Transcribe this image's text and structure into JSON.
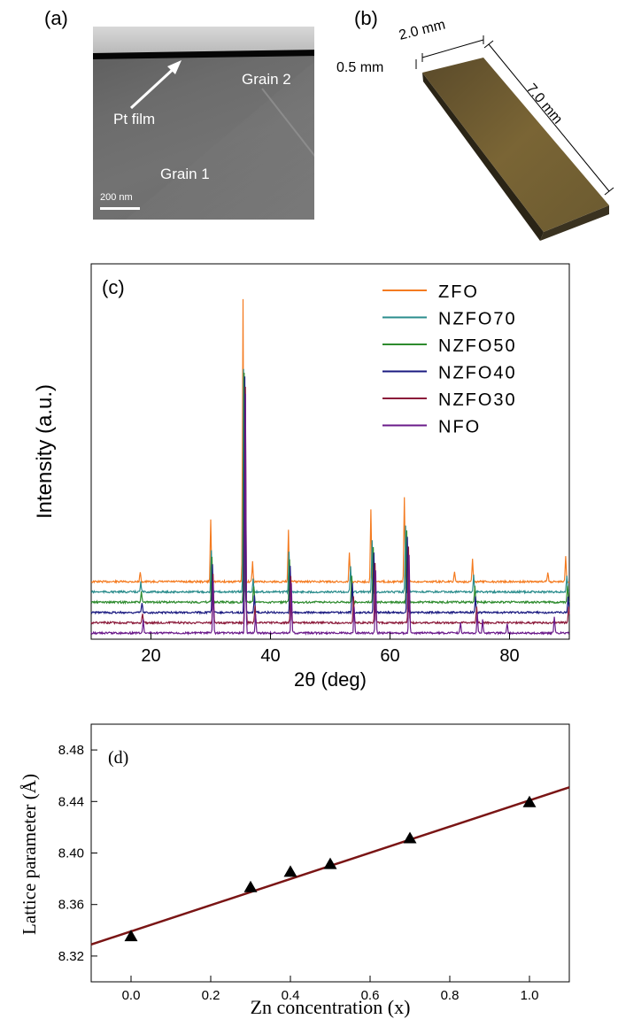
{
  "panel_a": {
    "label": "(a)",
    "pt_film": "Pt film",
    "grain1": "Grain 1",
    "grain2": "Grain 2",
    "scale_bar": "200 nm"
  },
  "panel_b": {
    "label": "(b)",
    "width": "2.0 mm",
    "thickness": "0.5 mm",
    "length": "7.0 mm"
  },
  "panel_c": {
    "label": "(c)",
    "chart_data": {
      "type": "line",
      "xlabel": "2θ (deg)",
      "ylabel": "Intensity (a.u.)",
      "xlim": [
        10,
        90
      ],
      "xticks": [
        20,
        40,
        60,
        80
      ],
      "legend_position": "top-right",
      "series": [
        {
          "name": "ZFO",
          "color": "#f47b20",
          "offset": 5,
          "peaks": [
            [
              18.2,
              0.3
            ],
            [
              30.0,
              1.9
            ],
            [
              35.4,
              8.6
            ],
            [
              37.0,
              0.6
            ],
            [
              43.0,
              1.6
            ],
            [
              53.2,
              0.9
            ],
            [
              56.8,
              2.2
            ],
            [
              62.4,
              2.6
            ],
            [
              70.8,
              0.3
            ],
            [
              73.8,
              0.7
            ],
            [
              86.4,
              0.3
            ],
            [
              89.4,
              0.8
            ]
          ]
        },
        {
          "name": "NZFO70",
          "color": "#2a8c8c",
          "offset": 4,
          "peaks": [
            [
              18.3,
              0.3
            ],
            [
              30.1,
              1.3
            ],
            [
              35.5,
              6.8
            ],
            [
              37.1,
              0.4
            ],
            [
              43.1,
              1.2
            ],
            [
              53.4,
              0.8
            ],
            [
              57.0,
              1.6
            ],
            [
              62.6,
              2.0
            ],
            [
              74.0,
              0.5
            ],
            [
              89.6,
              0.5
            ]
          ]
        },
        {
          "name": "NZFO50",
          "color": "#2e8b2e",
          "offset": 3,
          "peaks": [
            [
              18.4,
              0.3
            ],
            [
              30.2,
              1.4
            ],
            [
              35.6,
              7.0
            ],
            [
              37.2,
              0.5
            ],
            [
              43.2,
              1.3
            ],
            [
              53.6,
              0.8
            ],
            [
              57.2,
              1.7
            ],
            [
              62.8,
              2.2
            ],
            [
              74.2,
              0.5
            ],
            [
              89.7,
              0.5
            ]
          ]
        },
        {
          "name": "NZFO40",
          "color": "#1a1a80",
          "offset": 2,
          "peaks": [
            [
              18.5,
              0.3
            ],
            [
              30.3,
              1.5
            ],
            [
              35.7,
              7.2
            ],
            [
              37.3,
              0.5
            ],
            [
              43.3,
              1.4
            ],
            [
              53.7,
              0.9
            ],
            [
              57.3,
              1.8
            ],
            [
              62.9,
              2.3
            ],
            [
              74.3,
              0.5
            ],
            [
              89.8,
              0.5
            ]
          ]
        },
        {
          "name": "NZFO30",
          "color": "#8b1a3a",
          "offset": 1,
          "peaks": [
            [
              18.6,
              0.3
            ],
            [
              30.4,
              1.5
            ],
            [
              35.8,
              7.2
            ],
            [
              37.4,
              0.5
            ],
            [
              43.4,
              1.4
            ],
            [
              53.9,
              0.8
            ],
            [
              57.5,
              1.8
            ],
            [
              63.1,
              2.3
            ],
            [
              74.5,
              0.5
            ],
            [
              89.9,
              0.5
            ]
          ]
        },
        {
          "name": "NFO",
          "color": "#6a1a8a",
          "offset": 0,
          "peaks": [
            [
              18.7,
              0.4
            ],
            [
              30.4,
              1.6
            ],
            [
              35.8,
              7.3
            ],
            [
              37.5,
              0.6
            ],
            [
              43.5,
              1.5
            ],
            [
              54.0,
              0.8
            ],
            [
              57.6,
              1.9
            ],
            [
              63.2,
              2.4
            ],
            [
              71.8,
              0.3
            ],
            [
              74.6,
              0.6
            ],
            [
              75.5,
              0.4
            ],
            [
              79.6,
              0.3
            ],
            [
              87.5,
              0.5
            ]
          ]
        }
      ]
    }
  },
  "panel_d": {
    "label": "(d)",
    "chart_data": {
      "type": "scatter",
      "xlabel": "Zn concentration (x)",
      "ylabel": "Lattice parameter (Å)",
      "xlim": [
        -0.1,
        1.1
      ],
      "ylim": [
        8.3,
        8.5
      ],
      "xticks": [
        0.0,
        0.2,
        0.4,
        0.6,
        0.8,
        1.0
      ],
      "xtick_labels": [
        "0.0",
        "0.2",
        "0.4",
        "0.6",
        "0.8",
        "1.0"
      ],
      "yticks": [
        8.32,
        8.36,
        8.4,
        8.44,
        8.48
      ],
      "ytick_labels": [
        "8.32",
        "8.36",
        "8.40",
        "8.44",
        "8.48"
      ],
      "x": [
        0.0,
        0.3,
        0.4,
        0.5,
        0.7,
        1.0
      ],
      "y": [
        8.335,
        8.373,
        8.385,
        8.391,
        8.411,
        8.439
      ],
      "fit_line": {
        "x": [
          -0.1,
          1.1
        ],
        "y": [
          8.329,
          8.451
        ],
        "color": "#7a1515"
      },
      "marker_color": "#000000"
    }
  }
}
